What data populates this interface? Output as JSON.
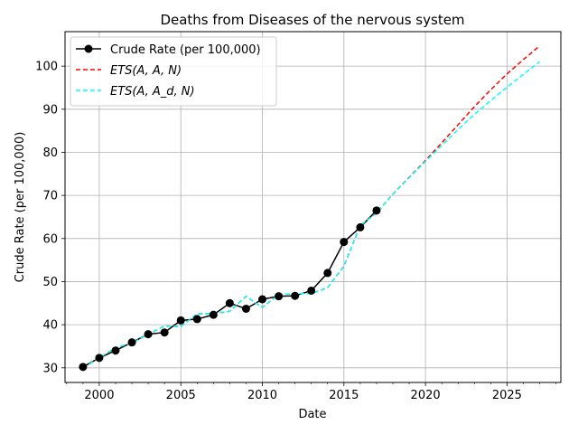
{
  "chart_data": {
    "type": "line",
    "title": "Deaths from Diseases of the nervous system",
    "xlabel": "Date",
    "ylabel": "Crude Rate (per 100,000)",
    "xlim": [
      1997.9,
      2028.3
    ],
    "ylim": [
      26.6,
      108.0
    ],
    "xticks": [
      2000,
      2005,
      2010,
      2015,
      2020,
      2025
    ],
    "yticks": [
      30,
      40,
      50,
      60,
      70,
      80,
      90,
      100
    ],
    "grid": true,
    "legend_position": "top-left",
    "series": [
      {
        "name": "Crude Rate (per 100,000)",
        "color": "#000000",
        "style": "solid-markers",
        "x": [
          1999,
          2000,
          2001,
          2002,
          2003,
          2004,
          2005,
          2006,
          2007,
          2008,
          2009,
          2010,
          2011,
          2012,
          2013,
          2014,
          2015,
          2016,
          2017
        ],
        "y": [
          30.2,
          32.3,
          34.0,
          35.9,
          37.8,
          38.2,
          41.0,
          41.3,
          42.3,
          45.0,
          43.7,
          45.9,
          46.6,
          46.7,
          47.9,
          52.0,
          59.2,
          62.6,
          66.5
        ]
      },
      {
        "name": "ETS(A, A, N)",
        "color": "#ff0000",
        "style": "dashed",
        "x": [
          1999,
          2000,
          2001,
          2002,
          2003,
          2004,
          2005,
          2006,
          2007,
          2008,
          2009,
          2010,
          2011,
          2012,
          2013,
          2014,
          2015,
          2016,
          2017,
          2018,
          2019,
          2020,
          2021,
          2022,
          2023,
          2024,
          2025,
          2026,
          2027
        ],
        "y": [
          30.0,
          32.3,
          34.7,
          35.7,
          37.8,
          39.7,
          39.6,
          42.5,
          42.6,
          43.1,
          46.6,
          44.0,
          47.0,
          47.2,
          47.2,
          48.6,
          53.6,
          63.0,
          65.9,
          70.3,
          74.2,
          78.1,
          82.2,
          86.4,
          90.6,
          94.5,
          98.2,
          101.5,
          104.7
        ]
      },
      {
        "name": "ETS(A, A_d, N)",
        "color": "#00ffff",
        "style": "dashed",
        "x": [
          1999,
          2000,
          2001,
          2002,
          2003,
          2004,
          2005,
          2006,
          2007,
          2008,
          2009,
          2010,
          2011,
          2012,
          2013,
          2014,
          2015,
          2016,
          2017,
          2018,
          2019,
          2020,
          2021,
          2022,
          2023,
          2024,
          2025,
          2026,
          2027
        ],
        "y": [
          30.0,
          32.3,
          34.7,
          35.7,
          37.8,
          39.7,
          39.6,
          42.5,
          42.6,
          43.1,
          46.6,
          44.0,
          47.0,
          47.2,
          47.2,
          48.6,
          53.6,
          63.0,
          65.9,
          70.3,
          74.1,
          77.9,
          81.6,
          85.3,
          88.8,
          92.0,
          95.1,
          98.1,
          101.0
        ]
      }
    ]
  }
}
